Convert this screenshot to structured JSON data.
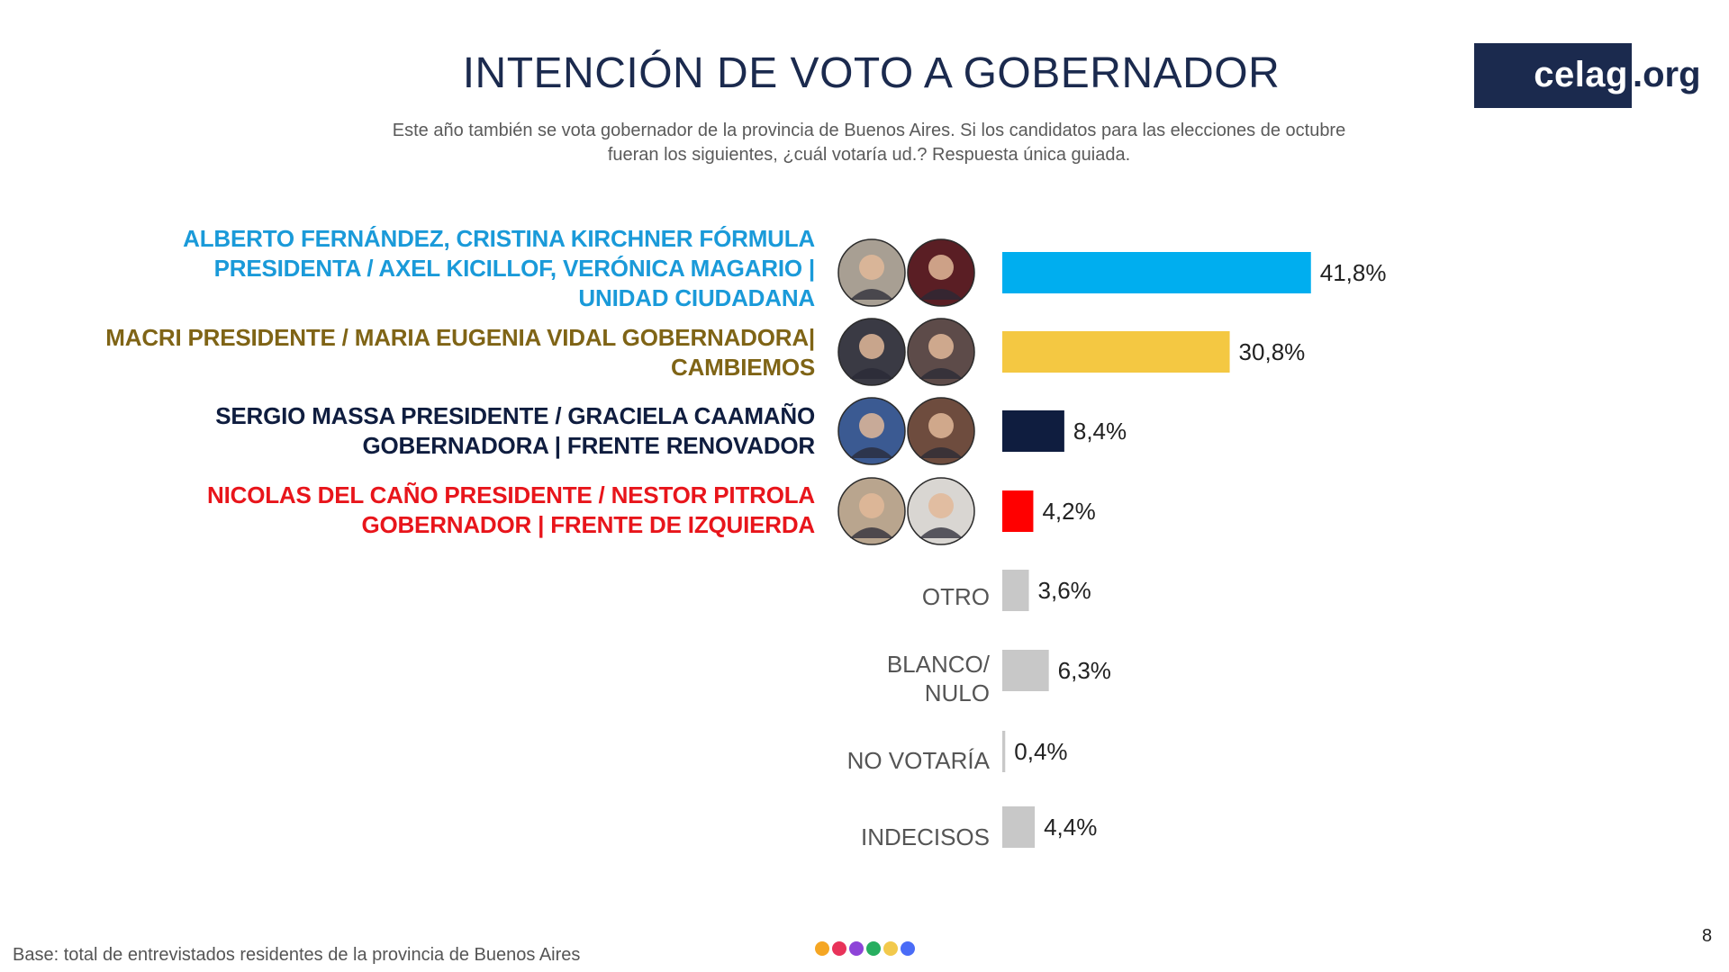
{
  "title": "INTENCIÓN DE VOTO A GOBERNADOR",
  "subtitle": "Este año también se vota gobernador de la provincia de Buenos Aires. Si los candidatos para las elecciones de octubre fueran los siguientes, ¿cuál votaría ud.? Respuesta única guiada.",
  "logo": {
    "main": "celag",
    "suffix": ".org"
  },
  "footnote": "Base: total de entrevistados residentes de la provincia de Buenos Aires",
  "page_number": "8",
  "decor_dot_colors": [
    "#f5a623",
    "#e8335a",
    "#8e44d8",
    "#27ae60",
    "#f2c94c",
    "#4a6cf7"
  ],
  "chart_data": {
    "type": "bar",
    "orientation": "horizontal",
    "title": "INTENCIÓN DE VOTO A GOBERNADOR",
    "unit": "%",
    "xlim": [
      0,
      45
    ],
    "grid": false,
    "legend": "none",
    "categories": [
      "ALBERTO FERNÁNDEZ, CRISTINA KIRCHNER FÓRMULA PRESIDENTA / AXEL KICILLOF, VERÓNICA MAGARIO | UNIDAD CIUDADANA",
      "MACRI PRESIDENTE / MARIA EUGENIA VIDAL GOBERNADORA| CAMBIEMOS",
      "SERGIO MASSA PRESIDENTE / GRACIELA CAAMAÑO GOBERNADORA | FRENTE RENOVADOR",
      "NICOLAS DEL CAÑO PRESIDENTE / NESTOR PITROLA GOBERNADOR | FRENTE DE IZQUIERDA",
      "OTRO",
      "BLANCO/ NULO",
      "NO VOTARÍA",
      "INDECISOS"
    ],
    "values": [
      41.8,
      30.8,
      8.4,
      4.2,
      3.6,
      6.3,
      0.4,
      4.4
    ],
    "value_labels": [
      "41,8%",
      "30,8%",
      "8,4%",
      "4,2%",
      "3,6%",
      "6,3%",
      "0,4%",
      "4,4%"
    ],
    "colors": [
      "#00aeef",
      "#f4c842",
      "#0f1d3f",
      "#ff0000",
      "#c8c8c8",
      "#c8c8c8",
      "#c8c8c8",
      "#c8c8c8"
    ],
    "label_colors": [
      "#1a9ad9",
      "#7f6416",
      "#0f1d3f",
      "#e8151b",
      "#555555",
      "#555555",
      "#555555",
      "#555555"
    ]
  },
  "candidate_labels": [
    {
      "lines": [
        "ALBERTO FERNÁNDEZ, CRISTINA KIRCHNER FÓRMULA",
        "PRESIDENTA / AXEL KICILLOF, VERÓNICA MAGARIO |",
        "UNIDAD CIUDADANA"
      ]
    },
    {
      "lines": [
        "MACRI PRESIDENTE / MARIA EUGENIA VIDAL GOBERNADORA|",
        "CAMBIEMOS"
      ]
    },
    {
      "lines": [
        "SERGIO MASSA PRESIDENTE / GRACIELA CAAMAÑO",
        "GOBERNADORA | FRENTE RENOVADOR"
      ]
    },
    {
      "lines": [
        "NICOLAS DEL CAÑO PRESIDENTE / NESTOR PITROLA",
        "GOBERNADOR | FRENTE DE IZQUIERDA"
      ]
    }
  ],
  "other_labels": [
    {
      "lines": [
        "OTRO"
      ]
    },
    {
      "lines": [
        "BLANCO/",
        "NULO"
      ]
    },
    {
      "lines": [
        "NO VOTARÍA"
      ]
    },
    {
      "lines": [
        "INDECISOS"
      ]
    }
  ]
}
